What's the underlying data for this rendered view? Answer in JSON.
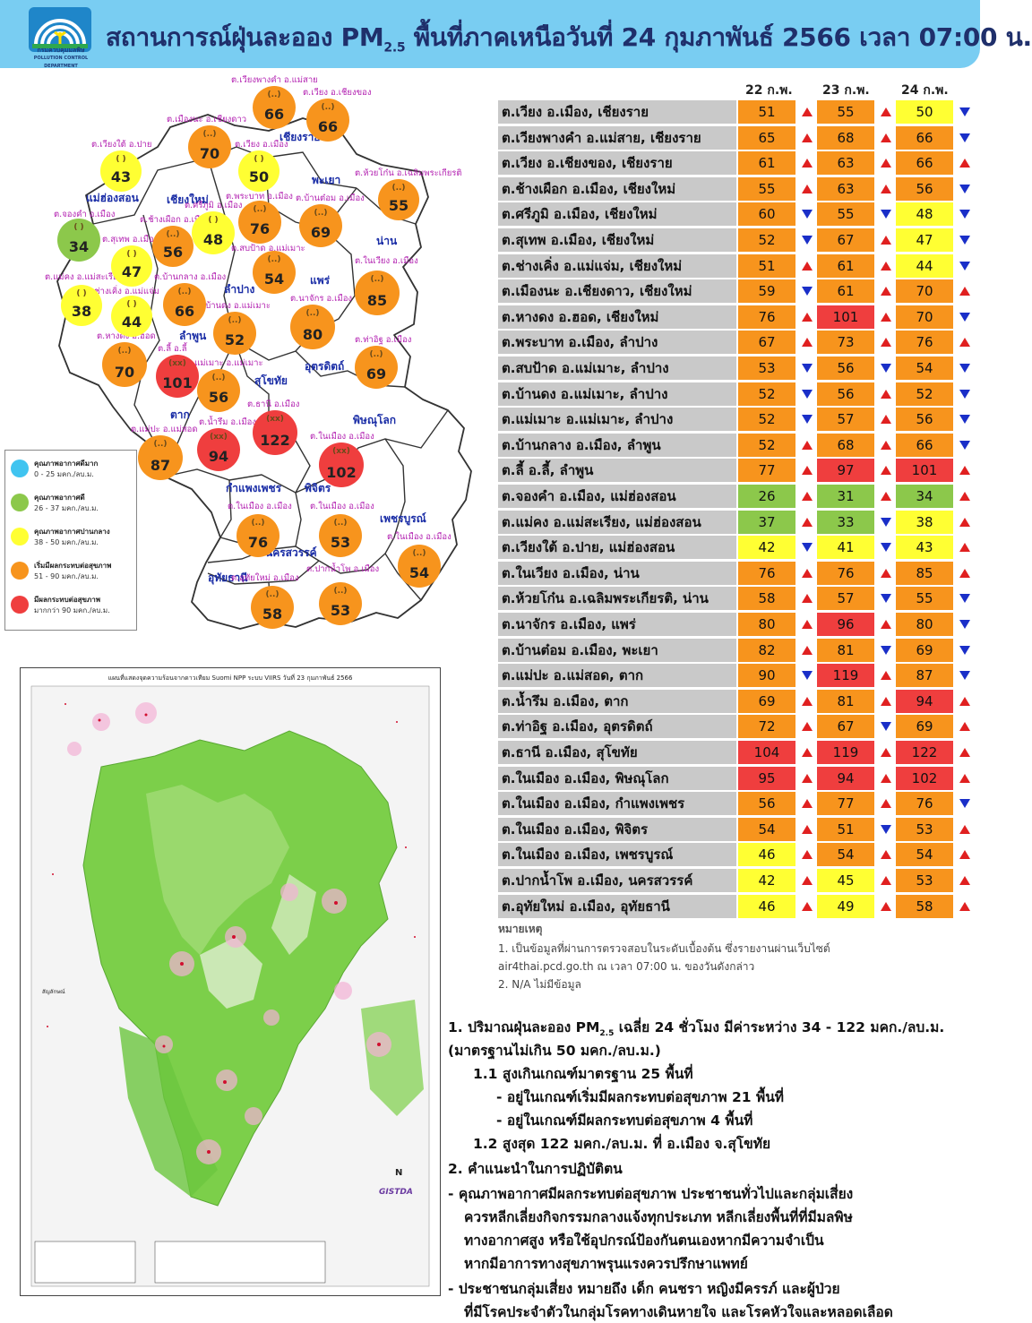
{
  "header": {
    "title": "สถานการณ์ฝุ่นละออง PM2.5 พื้นที่ภาคเหนือวันที่ 24 กุมภาพันธ์ 2566 เวลา 07:00 น.",
    "title_pre": "สถานการณ์ฝุ่นละออง PM",
    "title_sub": "2.5",
    "title_post": " พื้นที่ภาคเหนือวันที่ 24 กุมภาพันธ์ 2566 เวลา 07:00 น.",
    "logo_text": "กรมควบคุมมลพิษ",
    "logo_sub": "POLLUTION CONTROL DEPARTMENT"
  },
  "colors": {
    "header_bg": "#79cdf2",
    "excellent": "#40c4f0",
    "good": "#8cc84b",
    "moderate": "#ffff33",
    "unhealthy_start": "#f7941d",
    "unhealthy": "#ef3e3e",
    "row_name_bg": "#c9c9c9",
    "arrow_up": "#e02020",
    "arrow_down": "#1a2fc8"
  },
  "map": {
    "provinces": [
      "เชียงราย",
      "แม่ฮ่องสอน",
      "เชียงใหม่",
      "พะเยา",
      "น่าน",
      "ลำปาง",
      "แพร่",
      "ลำพูน",
      "อุตรดิตถ์",
      "สุโขทัย",
      "ตาก",
      "พิษณุโลก",
      "กำแพงเพชร",
      "พิจิตร",
      "เพชรบูรณ์",
      "นครสวรรค์",
      "อุทัยธานี"
    ],
    "stations": [
      {
        "label": "ต.เวียงพางคำ อ.แม่สาย",
        "value": "66",
        "level": "unhealthy_start"
      },
      {
        "label": "ต.เวียง อ.เชียงของ",
        "value": "66",
        "level": "unhealthy_start"
      },
      {
        "label": "ต.เมืองนะ อ.เชียงดาว",
        "value": "70",
        "level": "unhealthy_start"
      },
      {
        "label": "ต.เวียงใต้ อ.ปาย",
        "value": "43",
        "level": "moderate"
      },
      {
        "label": "ต.เวียง อ.เมือง",
        "value": "50",
        "level": "moderate"
      },
      {
        "label": "ต.ห้วยโก๋น อ.เฉลิมพระเกียรติ",
        "value": "55",
        "level": "unhealthy_start"
      },
      {
        "label": "ต.จองคำ อ.เมือง",
        "value": "34",
        "level": "good"
      },
      {
        "label": "ต.ช้างเผือก อ.เมือง",
        "value": "56",
        "level": "unhealthy_start"
      },
      {
        "label": "ต.ศรีภูมิ อ.เมือง",
        "value": "48",
        "level": "moderate"
      },
      {
        "label": "ต.พระบาท อ.เมือง",
        "value": "76",
        "level": "unhealthy_start"
      },
      {
        "label": "ต.บ้านต๋อม อ.เมือง",
        "value": "69",
        "level": "unhealthy_start"
      },
      {
        "label": "ต.สุเทพ อ.เมือง",
        "value": "47",
        "level": "moderate"
      },
      {
        "label": "ต.สบป้าด อ.แม่เมาะ",
        "value": "54",
        "level": "unhealthy_start"
      },
      {
        "label": "ต.ในเวียง อ.เมือง",
        "value": "85",
        "level": "unhealthy_start"
      },
      {
        "label": "ต.แม่คง อ.แม่สะเรียง",
        "value": "38",
        "level": "moderate"
      },
      {
        "label": "ต.ช่างเคิ่ง อ.แม่แจ่ม",
        "value": "44",
        "level": "moderate"
      },
      {
        "label": "ต.บ้านกลาง อ.เมือง",
        "value": "66",
        "level": "unhealthy_start"
      },
      {
        "label": "ต.บ้านดง อ.แม่เมาะ",
        "value": "52",
        "level": "unhealthy_start"
      },
      {
        "label": "ต.นาจักร อ.เมือง",
        "value": "80",
        "level": "unhealthy_start"
      },
      {
        "label": "ต.หางดง อ.ฮอด",
        "value": "70",
        "level": "unhealthy_start"
      },
      {
        "label": "ต.ลี้ อ.ลี้",
        "value": "101",
        "level": "unhealthy"
      },
      {
        "label": "ต.แม่เมาะ อ.แม่เมาะ",
        "value": "56",
        "level": "unhealthy_start"
      },
      {
        "label": "ต.ท่าอิฐ อ.เมือง",
        "value": "69",
        "level": "unhealthy_start"
      },
      {
        "label": "ต.ธานี อ.เมือง",
        "value": "122",
        "level": "unhealthy"
      },
      {
        "label": "ต.น้ำรึม อ.เมือง",
        "value": "94",
        "level": "unhealthy"
      },
      {
        "label": "ต.แม่ปะ อ.แม่สอด",
        "value": "87",
        "level": "unhealthy_start"
      },
      {
        "label": "ต.ในเมือง อ.เมือง",
        "value": "102",
        "level": "unhealthy"
      },
      {
        "label": "ต.ในเมือง อ.เมือง",
        "value": "76",
        "level": "unhealthy_start"
      },
      {
        "label": "ต.ในเมือง อ.เมือง",
        "value": "53",
        "level": "unhealthy_start"
      },
      {
        "label": "ต.ในเมือง อ.เมือง",
        "value": "54",
        "level": "unhealthy_start"
      },
      {
        "label": "ต.อุทัยใหม่ อ.เมือง",
        "value": "58",
        "level": "unhealthy_start"
      },
      {
        "label": "ต.ปากน้ำโพ อ.เมือง",
        "value": "53",
        "level": "unhealthy_start"
      }
    ]
  },
  "legend": [
    {
      "title": "คุณภาพอากาศดีมาก",
      "range": "0 - 25 มคก./ลบ.ม.",
      "level": "excellent"
    },
    {
      "title": "คุณภาพอากาศดี",
      "range": "26 - 37 มคก./ลบ.ม.",
      "level": "good"
    },
    {
      "title": "คุณภาพอากาศปานกลาง",
      "range": "38 - 50 มคก./ลบ.ม.",
      "level": "moderate"
    },
    {
      "title": "เริ่มมีผลกระทบต่อสุขภาพ",
      "range": "51 - 90 มคก./ลบ.ม.",
      "level": "unhealthy_start"
    },
    {
      "title": "มีผลกระทบต่อสุขภาพ",
      "range": "มากกว่า 90 มคก./ลบ.ม.",
      "level": "unhealthy"
    }
  ],
  "satellite": {
    "title": "แผนที่แสดงจุดความร้อนจากดาวเทียม Suomi NPP ระบบ VIIRS วันที่ 23 กุมภาพันธ์ 2566",
    "legend_title": "สัญลักษณ์",
    "gistda": "GISTDA",
    "north": "N"
  },
  "table": {
    "dates": [
      "22 ก.พ.",
      "23 ก.พ.",
      "24 ก.พ."
    ],
    "rows": [
      {
        "name": "ต.เวียง อ.เมือง, เชียงราย",
        "v": [
          [
            "51",
            "unhealthy_start",
            "up"
          ],
          [
            "55",
            "unhealthy_start",
            "up"
          ],
          [
            "50",
            "moderate",
            "down"
          ]
        ]
      },
      {
        "name": "ต.เวียงพางคำ อ.แม่สาย, เชียงราย",
        "v": [
          [
            "65",
            "unhealthy_start",
            "up"
          ],
          [
            "68",
            "unhealthy_start",
            "up"
          ],
          [
            "66",
            "unhealthy_start",
            "down"
          ]
        ]
      },
      {
        "name": "ต.เวียง อ.เชียงของ, เชียงราย",
        "v": [
          [
            "61",
            "unhealthy_start",
            "up"
          ],
          [
            "63",
            "unhealthy_start",
            "up"
          ],
          [
            "66",
            "unhealthy_start",
            "up"
          ]
        ]
      },
      {
        "name": "ต.ช้างเผือก อ.เมือง, เชียงใหม่",
        "v": [
          [
            "55",
            "unhealthy_start",
            "up"
          ],
          [
            "63",
            "unhealthy_start",
            "up"
          ],
          [
            "56",
            "unhealthy_start",
            "down"
          ]
        ]
      },
      {
        "name": "ต.ศรีภูมิ อ.เมือง, เชียงใหม่",
        "v": [
          [
            "60",
            "unhealthy_start",
            "down"
          ],
          [
            "55",
            "unhealthy_start",
            "down"
          ],
          [
            "48",
            "moderate",
            "down"
          ]
        ]
      },
      {
        "name": "ต.สุเทพ อ.เมือง, เชียงใหม่",
        "v": [
          [
            "52",
            "unhealthy_start",
            "down"
          ],
          [
            "67",
            "unhealthy_start",
            "up"
          ],
          [
            "47",
            "moderate",
            "down"
          ]
        ]
      },
      {
        "name": "ต.ช่างเคิ่ง อ.แม่แจ่ม, เชียงใหม่",
        "v": [
          [
            "51",
            "unhealthy_start",
            "up"
          ],
          [
            "61",
            "unhealthy_start",
            "up"
          ],
          [
            "44",
            "moderate",
            "down"
          ]
        ]
      },
      {
        "name": "ต.เมืองนะ อ.เชียงดาว, เชียงใหม่",
        "v": [
          [
            "59",
            "unhealthy_start",
            "down"
          ],
          [
            "61",
            "unhealthy_start",
            "up"
          ],
          [
            "70",
            "unhealthy_start",
            "up"
          ]
        ]
      },
      {
        "name": "ต.หางดง อ.ฮอด, เชียงใหม่",
        "v": [
          [
            "76",
            "unhealthy_start",
            "up"
          ],
          [
            "101",
            "unhealthy",
            "up"
          ],
          [
            "70",
            "unhealthy_start",
            "down"
          ]
        ]
      },
      {
        "name": "ต.พระบาท อ.เมือง, ลำปาง",
        "v": [
          [
            "67",
            "unhealthy_start",
            "up"
          ],
          [
            "73",
            "unhealthy_start",
            "up"
          ],
          [
            "76",
            "unhealthy_start",
            "up"
          ]
        ]
      },
      {
        "name": "ต.สบป้าด อ.แม่เมาะ, ลำปาง",
        "v": [
          [
            "53",
            "unhealthy_start",
            "down"
          ],
          [
            "56",
            "unhealthy_start",
            "down"
          ],
          [
            "54",
            "unhealthy_start",
            "down"
          ]
        ]
      },
      {
        "name": "ต.บ้านดง อ.แม่เมาะ, ลำปาง",
        "v": [
          [
            "52",
            "unhealthy_start",
            "down"
          ],
          [
            "56",
            "unhealthy_start",
            "up"
          ],
          [
            "52",
            "unhealthy_start",
            "down"
          ]
        ]
      },
      {
        "name": "ต.แม่เมาะ อ.แม่เมาะ, ลำปาง",
        "v": [
          [
            "52",
            "unhealthy_start",
            "down"
          ],
          [
            "57",
            "unhealthy_start",
            "up"
          ],
          [
            "56",
            "unhealthy_start",
            "down"
          ]
        ]
      },
      {
        "name": "ต.บ้านกลาง อ.เมือง, ลำพูน",
        "v": [
          [
            "52",
            "unhealthy_start",
            "up"
          ],
          [
            "68",
            "unhealthy_start",
            "up"
          ],
          [
            "66",
            "unhealthy_start",
            "down"
          ]
        ]
      },
      {
        "name": "ต.ลี้ อ.ลี้, ลำพูน",
        "v": [
          [
            "77",
            "unhealthy_start",
            "up"
          ],
          [
            "97",
            "unhealthy",
            "up"
          ],
          [
            "101",
            "unhealthy",
            "up"
          ]
        ]
      },
      {
        "name": "ต.จองคำ อ.เมือง, แม่ฮ่องสอน",
        "v": [
          [
            "26",
            "good",
            "up"
          ],
          [
            "31",
            "good",
            "up"
          ],
          [
            "34",
            "good",
            "up"
          ]
        ]
      },
      {
        "name": "ต.แม่คง อ.แม่สะเรียง, แม่ฮ่องสอน",
        "v": [
          [
            "37",
            "good",
            "up"
          ],
          [
            "33",
            "good",
            "down"
          ],
          [
            "38",
            "moderate",
            "up"
          ]
        ]
      },
      {
        "name": "ต.เวียงใต้ อ.ปาย, แม่ฮ่องสอน",
        "v": [
          [
            "42",
            "moderate",
            "down"
          ],
          [
            "41",
            "moderate",
            "down"
          ],
          [
            "43",
            "moderate",
            "up"
          ]
        ]
      },
      {
        "name": "ต.ในเวียง อ.เมือง, น่าน",
        "v": [
          [
            "76",
            "unhealthy_start",
            "up"
          ],
          [
            "76",
            "unhealthy_start",
            "up"
          ],
          [
            "85",
            "unhealthy_start",
            "up"
          ]
        ]
      },
      {
        "name": "ต.ห้วยโก๋น อ.เฉลิมพระเกียรติ, น่าน",
        "v": [
          [
            "58",
            "unhealthy_start",
            "up"
          ],
          [
            "57",
            "unhealthy_start",
            "down"
          ],
          [
            "55",
            "unhealthy_start",
            "down"
          ]
        ]
      },
      {
        "name": "ต.นาจักร อ.เมือง, แพร่",
        "v": [
          [
            "80",
            "unhealthy_start",
            "up"
          ],
          [
            "96",
            "unhealthy",
            "up"
          ],
          [
            "80",
            "unhealthy_start",
            "down"
          ]
        ]
      },
      {
        "name": "ต.บ้านต๋อม อ.เมือง, พะเยา",
        "v": [
          [
            "82",
            "unhealthy_start",
            "up"
          ],
          [
            "81",
            "unhealthy_start",
            "down"
          ],
          [
            "69",
            "unhealthy_start",
            "down"
          ]
        ]
      },
      {
        "name": "ต.แม่ปะ อ.แม่สอด, ตาก",
        "v": [
          [
            "90",
            "unhealthy_start",
            "down"
          ],
          [
            "119",
            "unhealthy",
            "up"
          ],
          [
            "87",
            "unhealthy_start",
            "down"
          ]
        ]
      },
      {
        "name": "ต.น้ำรึม อ.เมือง, ตาก",
        "v": [
          [
            "69",
            "unhealthy_start",
            "up"
          ],
          [
            "81",
            "unhealthy_start",
            "up"
          ],
          [
            "94",
            "unhealthy",
            "up"
          ]
        ]
      },
      {
        "name": "ต.ท่าอิฐ อ.เมือง, อุตรดิตถ์",
        "v": [
          [
            "72",
            "unhealthy_start",
            "up"
          ],
          [
            "67",
            "unhealthy_start",
            "down"
          ],
          [
            "69",
            "unhealthy_start",
            "up"
          ]
        ]
      },
      {
        "name": "ต.ธานี อ.เมือง, สุโขทัย",
        "v": [
          [
            "104",
            "unhealthy",
            "up"
          ],
          [
            "119",
            "unhealthy",
            "up"
          ],
          [
            "122",
            "unhealthy",
            "up"
          ]
        ]
      },
      {
        "name": "ต.ในเมือง อ.เมือง, พิษณุโลก",
        "v": [
          [
            "95",
            "unhealthy",
            "up"
          ],
          [
            "94",
            "unhealthy",
            "up"
          ],
          [
            "102",
            "unhealthy",
            "up"
          ]
        ]
      },
      {
        "name": "ต.ในเมือง อ.เมือง, กำแพงเพชร",
        "v": [
          [
            "56",
            "unhealthy_start",
            "up"
          ],
          [
            "77",
            "unhealthy_start",
            "up"
          ],
          [
            "76",
            "unhealthy_start",
            "down"
          ]
        ]
      },
      {
        "name": "ต.ในเมือง อ.เมือง, พิจิตร",
        "v": [
          [
            "54",
            "unhealthy_start",
            "up"
          ],
          [
            "51",
            "unhealthy_start",
            "down"
          ],
          [
            "53",
            "unhealthy_start",
            "up"
          ]
        ]
      },
      {
        "name": "ต.ในเมือง อ.เมือง, เพชรบูรณ์",
        "v": [
          [
            "46",
            "moderate",
            "up"
          ],
          [
            "54",
            "unhealthy_start",
            "up"
          ],
          [
            "54",
            "unhealthy_start",
            "up"
          ]
        ]
      },
      {
        "name": "ต.ปากน้ำโพ อ.เมือง, นครสวรรค์",
        "v": [
          [
            "42",
            "moderate",
            "up"
          ],
          [
            "45",
            "moderate",
            "up"
          ],
          [
            "53",
            "unhealthy_start",
            "up"
          ]
        ]
      },
      {
        "name": "ต.อุทัยใหม่ อ.เมือง, อุทัยธานี",
        "v": [
          [
            "46",
            "moderate",
            "up"
          ],
          [
            "49",
            "moderate",
            "up"
          ],
          [
            "58",
            "unhealthy_start",
            "up"
          ]
        ]
      }
    ]
  },
  "notes": {
    "heading": "หมายเหตุ",
    "line1": "1.  เป็นข้อมูลที่ผ่านการตรวจสอบในระดับเบื้องต้น  ซึ่งรายงานผ่านเว็บไซต์",
    "line2": "air4thai.pcd.go.th  ณ  เวลา 07:00  น.  ของวันดังกล่าว",
    "line3": "2.  N/A  ไม่มีข้อมูล"
  },
  "summary": {
    "l1a": "1. ปริมาณฝุ่นละออง PM",
    "l1sub": "2.5",
    "l1b": "  เฉลี่ย 24 ชั่วโมง มีค่าระหว่าง 34 - 122 มคก./ลบ.ม.",
    "l2": "(มาตรฐานไม่เกิน 50 มคก./ลบ.ม.)",
    "l3": "1.1 สูงเกินเกณฑ์มาตรฐาน 25 พื้นที่",
    "l4": "- อยู่ในเกณฑ์เริ่มมีผลกระทบต่อสุขภาพ 21 พื้นที่",
    "l5": "- อยู่ในเกณฑ์มีผลกระทบต่อสุขภาพ 4 พื้นที่",
    "l6": "1.2 สูงสุด 122 มคก./ลบ.ม. ที่ อ.เมือง จ.สุโขทัย",
    "l7": "2. คำแนะนำในการปฏิบัติตน",
    "l8": "- คุณภาพอากาศมีผลกระทบต่อสุขภาพ ประชาชนทั่วไปและกลุ่มเสี่ยง",
    "l9": "ควรหลีกเลี่ยงกิจกรรมกลางแจ้งทุกประเภท หลีกเลี่ยงพื้นที่ที่มีมลพิษ",
    "l10": "ทางอากาศสูง หรือใช้อุปกรณ์ป้องกันตนเองหากมีความจำเป็น",
    "l11": "หากมีอาการทางสุขภาพรุนแรงควรปรึกษาแพทย์",
    "l12": "- ประชาชนกลุ่มเสี่ยง หมายถึง เด็ก คนชรา หญิงมีครรภ์ และผู้ป่วย",
    "l13": "ที่มีโรคประจำตัวในกลุ่มโรคทางเดินหายใจ และโรคหัวใจและหลอดเลือด"
  }
}
